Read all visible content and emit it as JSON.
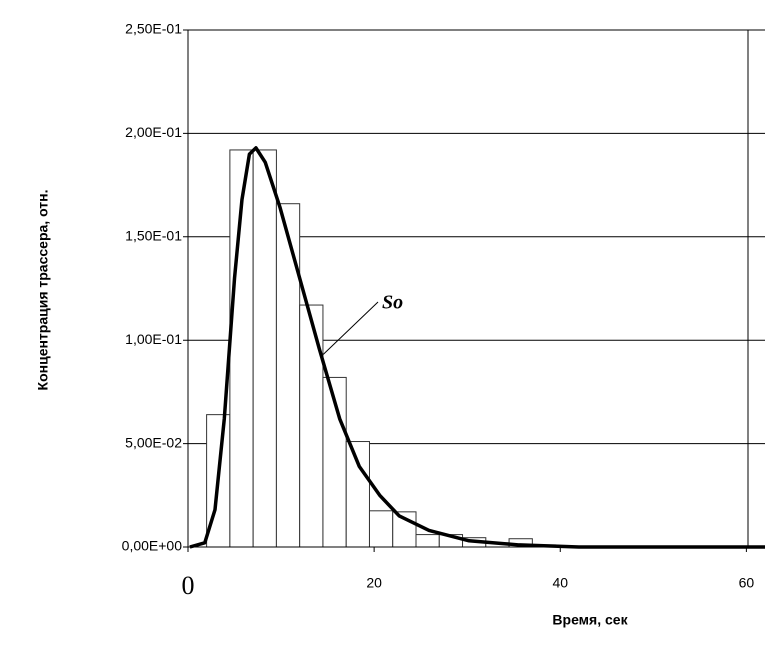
{
  "chart_data": {
    "type": "histogram",
    "x_label": "Время, сек",
    "y_label": "Концентрация трассера, отн.",
    "annotation": "So",
    "bins": [
      2,
      4.5,
      7,
      9.5,
      12,
      14.5,
      17,
      19.5,
      22,
      24.5,
      27,
      29.5,
      32,
      34.5,
      37,
      39.5
    ],
    "values": [
      0.064,
      0.192,
      0.192,
      0.166,
      0.117,
      0.082,
      0.051,
      0.0175,
      0.017,
      0.006,
      0.006,
      0.0045,
      0.002,
      0.004,
      0.001
    ],
    "bar_fill": "#ffffff",
    "bar_stroke": "#333333",
    "curve": {
      "type": "line",
      "color": "#000000",
      "x": [
        0.2,
        1.8,
        2.9,
        3.9,
        5.0,
        5.8,
        6.6,
        7.3,
        8.3,
        9.9,
        12.0,
        14.1,
        16.3,
        18.4,
        20.6,
        22.7,
        25.9,
        30.2,
        35.6,
        42.0,
        62
      ],
      "values": [
        0,
        0.002,
        0.018,
        0.062,
        0.13,
        0.168,
        0.19,
        0.193,
        0.186,
        0.164,
        0.13,
        0.096,
        0.062,
        0.039,
        0.025,
        0.015,
        0.008,
        0.003,
        0.001,
        0,
        0
      ]
    },
    "xlim": [
      0,
      62
    ],
    "ylim": [
      0,
      0.25
    ],
    "xticks": [
      0,
      20,
      40,
      60
    ],
    "yticks": [
      {
        "value": 0,
        "label": "0,00E+00"
      },
      {
        "value": 0.05,
        "label": "5,00E-02"
      },
      {
        "value": 0.1,
        "label": "1,00E-01"
      },
      {
        "value": 0.15,
        "label": "1,50E-01"
      },
      {
        "value": 0.2,
        "label": "2,00E-01"
      },
      {
        "value": 0.25,
        "label": "2,50E-01"
      }
    ],
    "grid": true
  }
}
